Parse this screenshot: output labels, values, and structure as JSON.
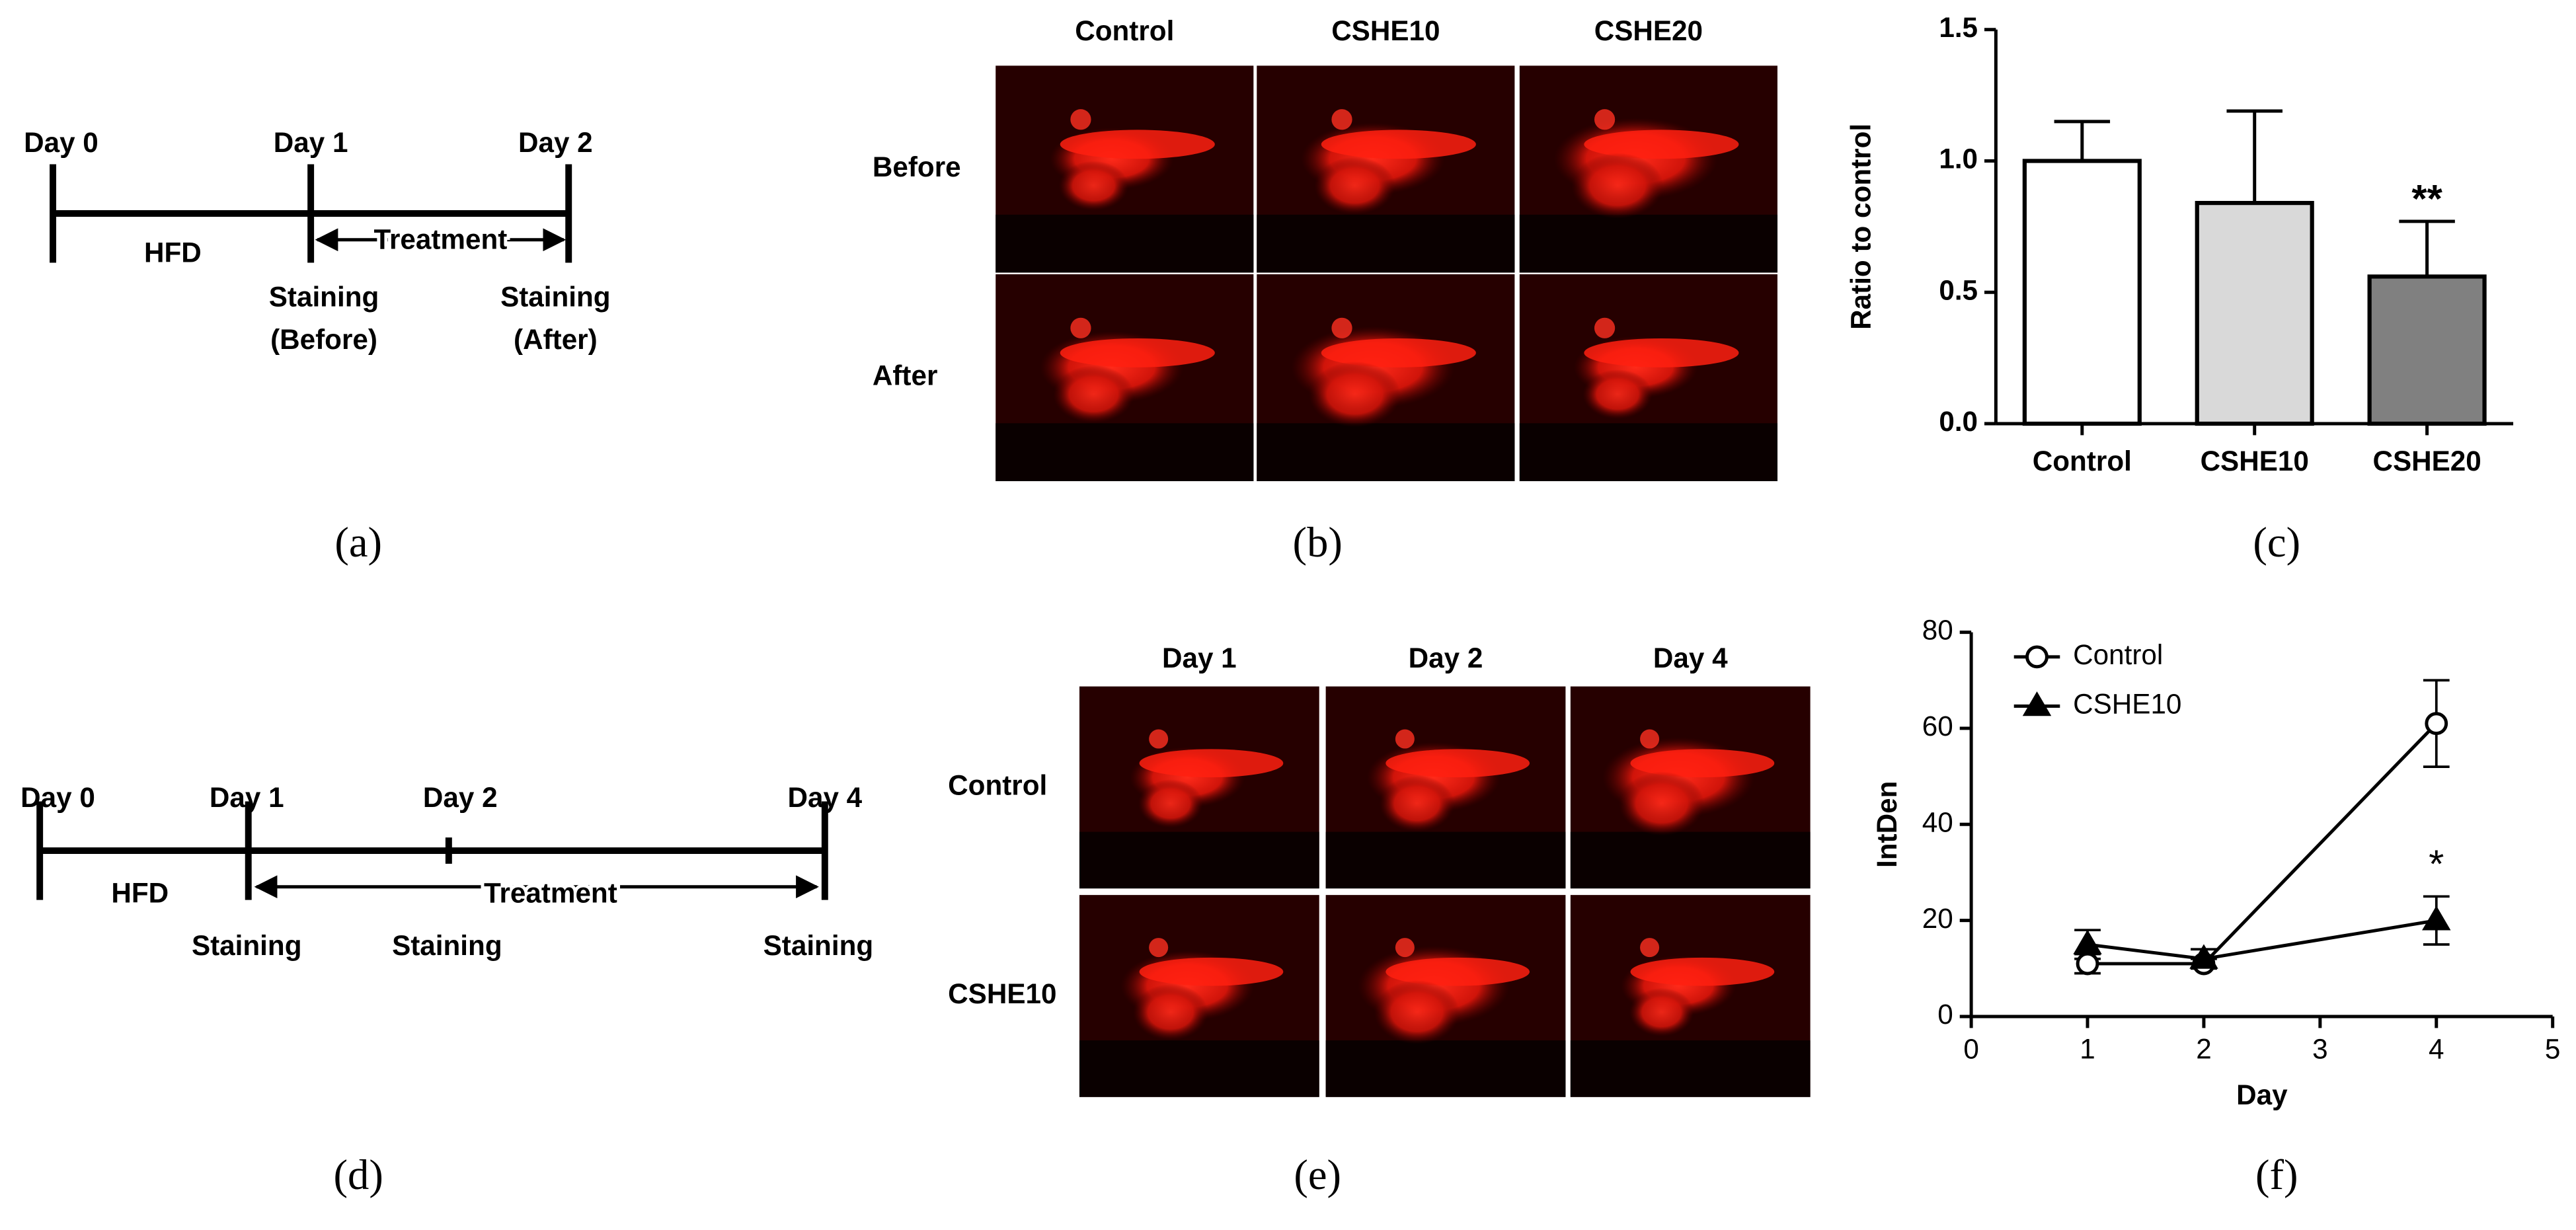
{
  "panel_labels": [
    "(a)",
    "(b)",
    "(c)",
    "(d)",
    "(e)",
    "(f)"
  ],
  "timeline_a": {
    "days": [
      "Day 0",
      "Day 1",
      "Day 2"
    ],
    "phases": [
      "HFD",
      "Treatment"
    ],
    "staining": [
      [
        "Staining",
        "(Before)"
      ],
      [
        "Staining",
        "(After)"
      ]
    ]
  },
  "image_grid_b": {
    "columns": [
      "Control",
      "CSHE10",
      "CSHE20"
    ],
    "rows": [
      "Before",
      "After"
    ]
  },
  "timeline_d": {
    "days": [
      "Day 0",
      "Day 1",
      "Day 2",
      "Day 4"
    ],
    "phases": [
      "HFD",
      "Treatment"
    ],
    "staining": [
      "Staining",
      "Staining",
      "Staining"
    ]
  },
  "image_grid_e": {
    "columns": [
      "Day 1",
      "Day 2",
      "Day 4"
    ],
    "rows": [
      "Control",
      "CSHE10"
    ]
  },
  "chart_data": [
    {
      "type": "bar",
      "ylabel": "Ratio to control",
      "categories": [
        "Control",
        "CSHE10",
        "CSHE20"
      ],
      "values": [
        1.0,
        0.84,
        0.56
      ],
      "errors": [
        0.15,
        0.35,
        0.21
      ],
      "significance": [
        null,
        null,
        "**"
      ],
      "colors": [
        "#ffffff",
        "#d9d9d9",
        "#808080"
      ],
      "ylim": [
        0,
        1.5
      ],
      "yticks": [
        {
          "value": 0,
          "label": "0.0"
        },
        {
          "value": 0.5,
          "label": "0.5"
        },
        {
          "value": 1,
          "label": "1.0"
        },
        {
          "value": 1.5,
          "label": "1.5"
        }
      ]
    },
    {
      "type": "line",
      "xlabel": "Day",
      "ylabel": "IntDen",
      "x": [
        1,
        2,
        4
      ],
      "series": [
        {
          "name": "Control",
          "color": "#000000",
          "marker": "open-circle",
          "values": [
            11,
            11,
            61
          ],
          "errors": [
            2,
            1,
            9
          ],
          "significance": [
            null,
            null,
            null
          ]
        },
        {
          "name": "CSHE10",
          "color": "#000000",
          "marker": "filled-triangle",
          "values": [
            15,
            12,
            20
          ],
          "errors": [
            3,
            2,
            5
          ],
          "significance": [
            null,
            null,
            "*"
          ]
        }
      ],
      "xlim": [
        0,
        5
      ],
      "xticks": [
        0,
        1,
        2,
        3,
        4,
        5
      ],
      "ylim": [
        0,
        80
      ],
      "yticks": [
        0,
        20,
        40,
        60,
        80
      ],
      "legend": "upper-left"
    }
  ]
}
